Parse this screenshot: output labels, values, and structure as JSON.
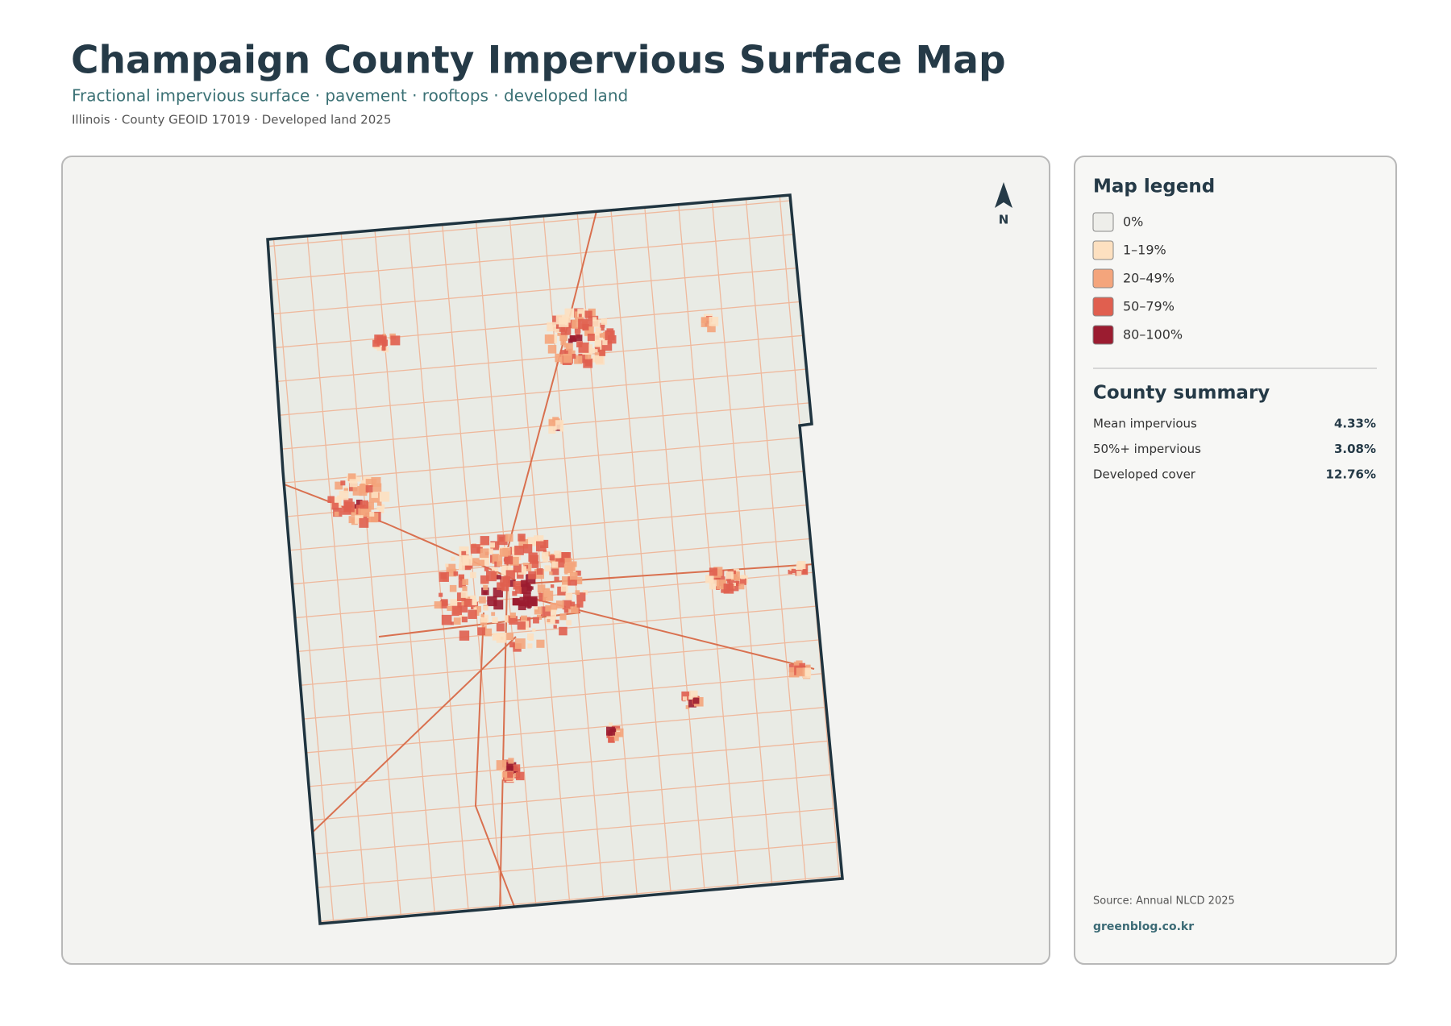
{
  "header": {
    "title": "Champaign County Impervious Surface Map",
    "subtitle": "Fractional impervious surface · pavement · rooftops · developed land",
    "meta": "Illinois · County GEOID 17019 · Developed land 2025"
  },
  "map": {
    "north": "N"
  },
  "legend": {
    "title": "Map legend",
    "items": [
      {
        "label": "0%",
        "color": "#eeeeea"
      },
      {
        "label": "1–19%",
        "color": "#fde0c0"
      },
      {
        "label": "20–49%",
        "color": "#f4a57c"
      },
      {
        "label": "50–79%",
        "color": "#e05f4f"
      },
      {
        "label": "80–100%",
        "color": "#9b1c30"
      }
    ]
  },
  "summary": {
    "title": "County summary",
    "rows": [
      {
        "label": "Mean impervious",
        "value": "4.33%"
      },
      {
        "label": "50%+ impervious",
        "value": "3.08%"
      },
      {
        "label": "Developed cover",
        "value": "12.76%"
      }
    ]
  },
  "footer": {
    "source": "Source: Annual NLCD 2025",
    "site": "greenblog.co.kr"
  }
}
